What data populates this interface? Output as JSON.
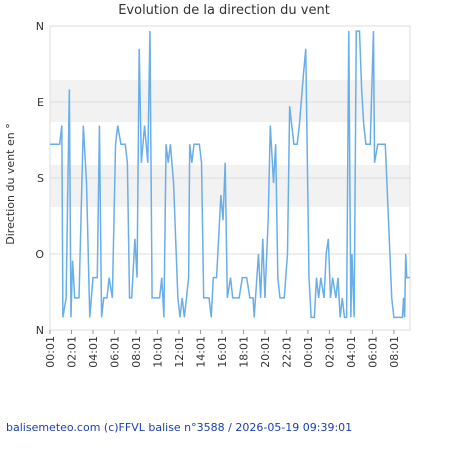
{
  "chart_data": {
    "type": "line",
    "title": "Evolution de la direction du vent",
    "y_label": "Direction du vent en °",
    "footer": "balisemeteo.com (c)FFVL balise n°3588 / 2026-05-19 09:39:01",
    "ylim": [
      360,
      0
    ],
    "yticks": [
      {
        "value": 360,
        "label": "N"
      },
      {
        "value": 270,
        "label": "O"
      },
      {
        "value": 180,
        "label": "S"
      },
      {
        "value": 90,
        "label": "E"
      },
      {
        "value": 0,
        "label": "N"
      }
    ],
    "xlim": [
      0,
      33.5
    ],
    "xticks": [
      {
        "value": 0,
        "label": "00:01"
      },
      {
        "value": 2,
        "label": "02:01"
      },
      {
        "value": 4,
        "label": "04:01"
      },
      {
        "value": 6,
        "label": "06:01"
      },
      {
        "value": 8,
        "label": "08:01"
      },
      {
        "value": 10,
        "label": "10:01"
      },
      {
        "value": 12,
        "label": "12:01"
      },
      {
        "value": 14,
        "label": "14:01"
      },
      {
        "value": 16,
        "label": "16:01"
      },
      {
        "value": 18,
        "label": "18:01"
      },
      {
        "value": 20,
        "label": "20:01"
      },
      {
        "value": 22,
        "label": "22:01"
      },
      {
        "value": 24,
        "label": "00:01"
      },
      {
        "value": 26,
        "label": "02:01"
      },
      {
        "value": 28,
        "label": "04:01"
      },
      {
        "value": 30,
        "label": "06:01"
      },
      {
        "value": 32,
        "label": "08:01"
      }
    ],
    "grid": true,
    "series": [
      {
        "color": "#6aaee8",
        "x": [
          0,
          0.9,
          1.1,
          1.2,
          1.5,
          1.8,
          1.95,
          2.1,
          2.3,
          2.7,
          3.1,
          3.4,
          3.7,
          4.0,
          4.4,
          4.6,
          4.8,
          5.0,
          5.3,
          5.5,
          5.8,
          6.1,
          6.3,
          6.6,
          7.0,
          7.2,
          7.4,
          7.6,
          7.9,
          8.1,
          8.3,
          8.5,
          8.8,
          9.1,
          9.3,
          9.5,
          10.2,
          10.4,
          10.6,
          10.8,
          11.0,
          11.2,
          11.5,
          11.9,
          12.1,
          12.3,
          12.5,
          12.9,
          13.0,
          13.2,
          13.4,
          13.9,
          14.1,
          14.3,
          14.8,
          15.0,
          15.2,
          15.5,
          15.9,
          16.1,
          16.3,
          16.5,
          16.8,
          17.0,
          17.6,
          17.9,
          18.3,
          18.6,
          18.9,
          19.0,
          19.4,
          19.6,
          19.8,
          20.0,
          20.3,
          20.5,
          20.8,
          21.0,
          21.2,
          21.4,
          21.8,
          22.1,
          22.3,
          22.5,
          22.7,
          23.0,
          23.2,
          23.6,
          23.8,
          24.1,
          24.3,
          24.6,
          24.8,
          25.0,
          25.2,
          25.5,
          25.7,
          25.9,
          26.1,
          26.3,
          26.6,
          26.8,
          27.0,
          27.2,
          27.4,
          27.6,
          27.8,
          28.0,
          28.1,
          28.3,
          28.5,
          28.8,
          29.0,
          29.2,
          29.4,
          29.8,
          30.1,
          30.2,
          30.5,
          31.2,
          31.5,
          31.8,
          32.0,
          32.8,
          32.9,
          33.0,
          33.1,
          33.2,
          33.5
        ],
        "values": [
          140,
          140,
          118,
          345,
          322,
          75,
          345,
          278,
          322,
          322,
          118,
          186,
          345,
          298,
          298,
          118,
          345,
          322,
          322,
          298,
          322,
          140,
          118,
          140,
          140,
          162,
          322,
          322,
          252,
          298,
          27,
          162,
          118,
          162,
          6,
          322,
          322,
          298,
          345,
          140,
          162,
          140,
          186,
          322,
          345,
          322,
          345,
          298,
          140,
          162,
          140,
          140,
          162,
          322,
          322,
          345,
          298,
          298,
          200,
          230,
          162,
          322,
          298,
          322,
          322,
          298,
          298,
          322,
          322,
          345,
          270,
          322,
          252,
          322,
          230,
          118,
          186,
          140,
          298,
          322,
          322,
          270,
          95,
          118,
          140,
          140,
          118,
          55,
          27,
          298,
          345,
          345,
          298,
          322,
          298,
          322,
          270,
          252,
          322,
          298,
          322,
          298,
          345,
          322,
          345,
          345,
          6,
          345,
          270,
          345,
          6,
          6,
          75,
          118,
          140,
          140,
          6,
          162,
          140,
          140,
          230,
          322,
          345,
          345,
          322,
          345,
          270,
          298,
          298
        ]
      }
    ]
  }
}
